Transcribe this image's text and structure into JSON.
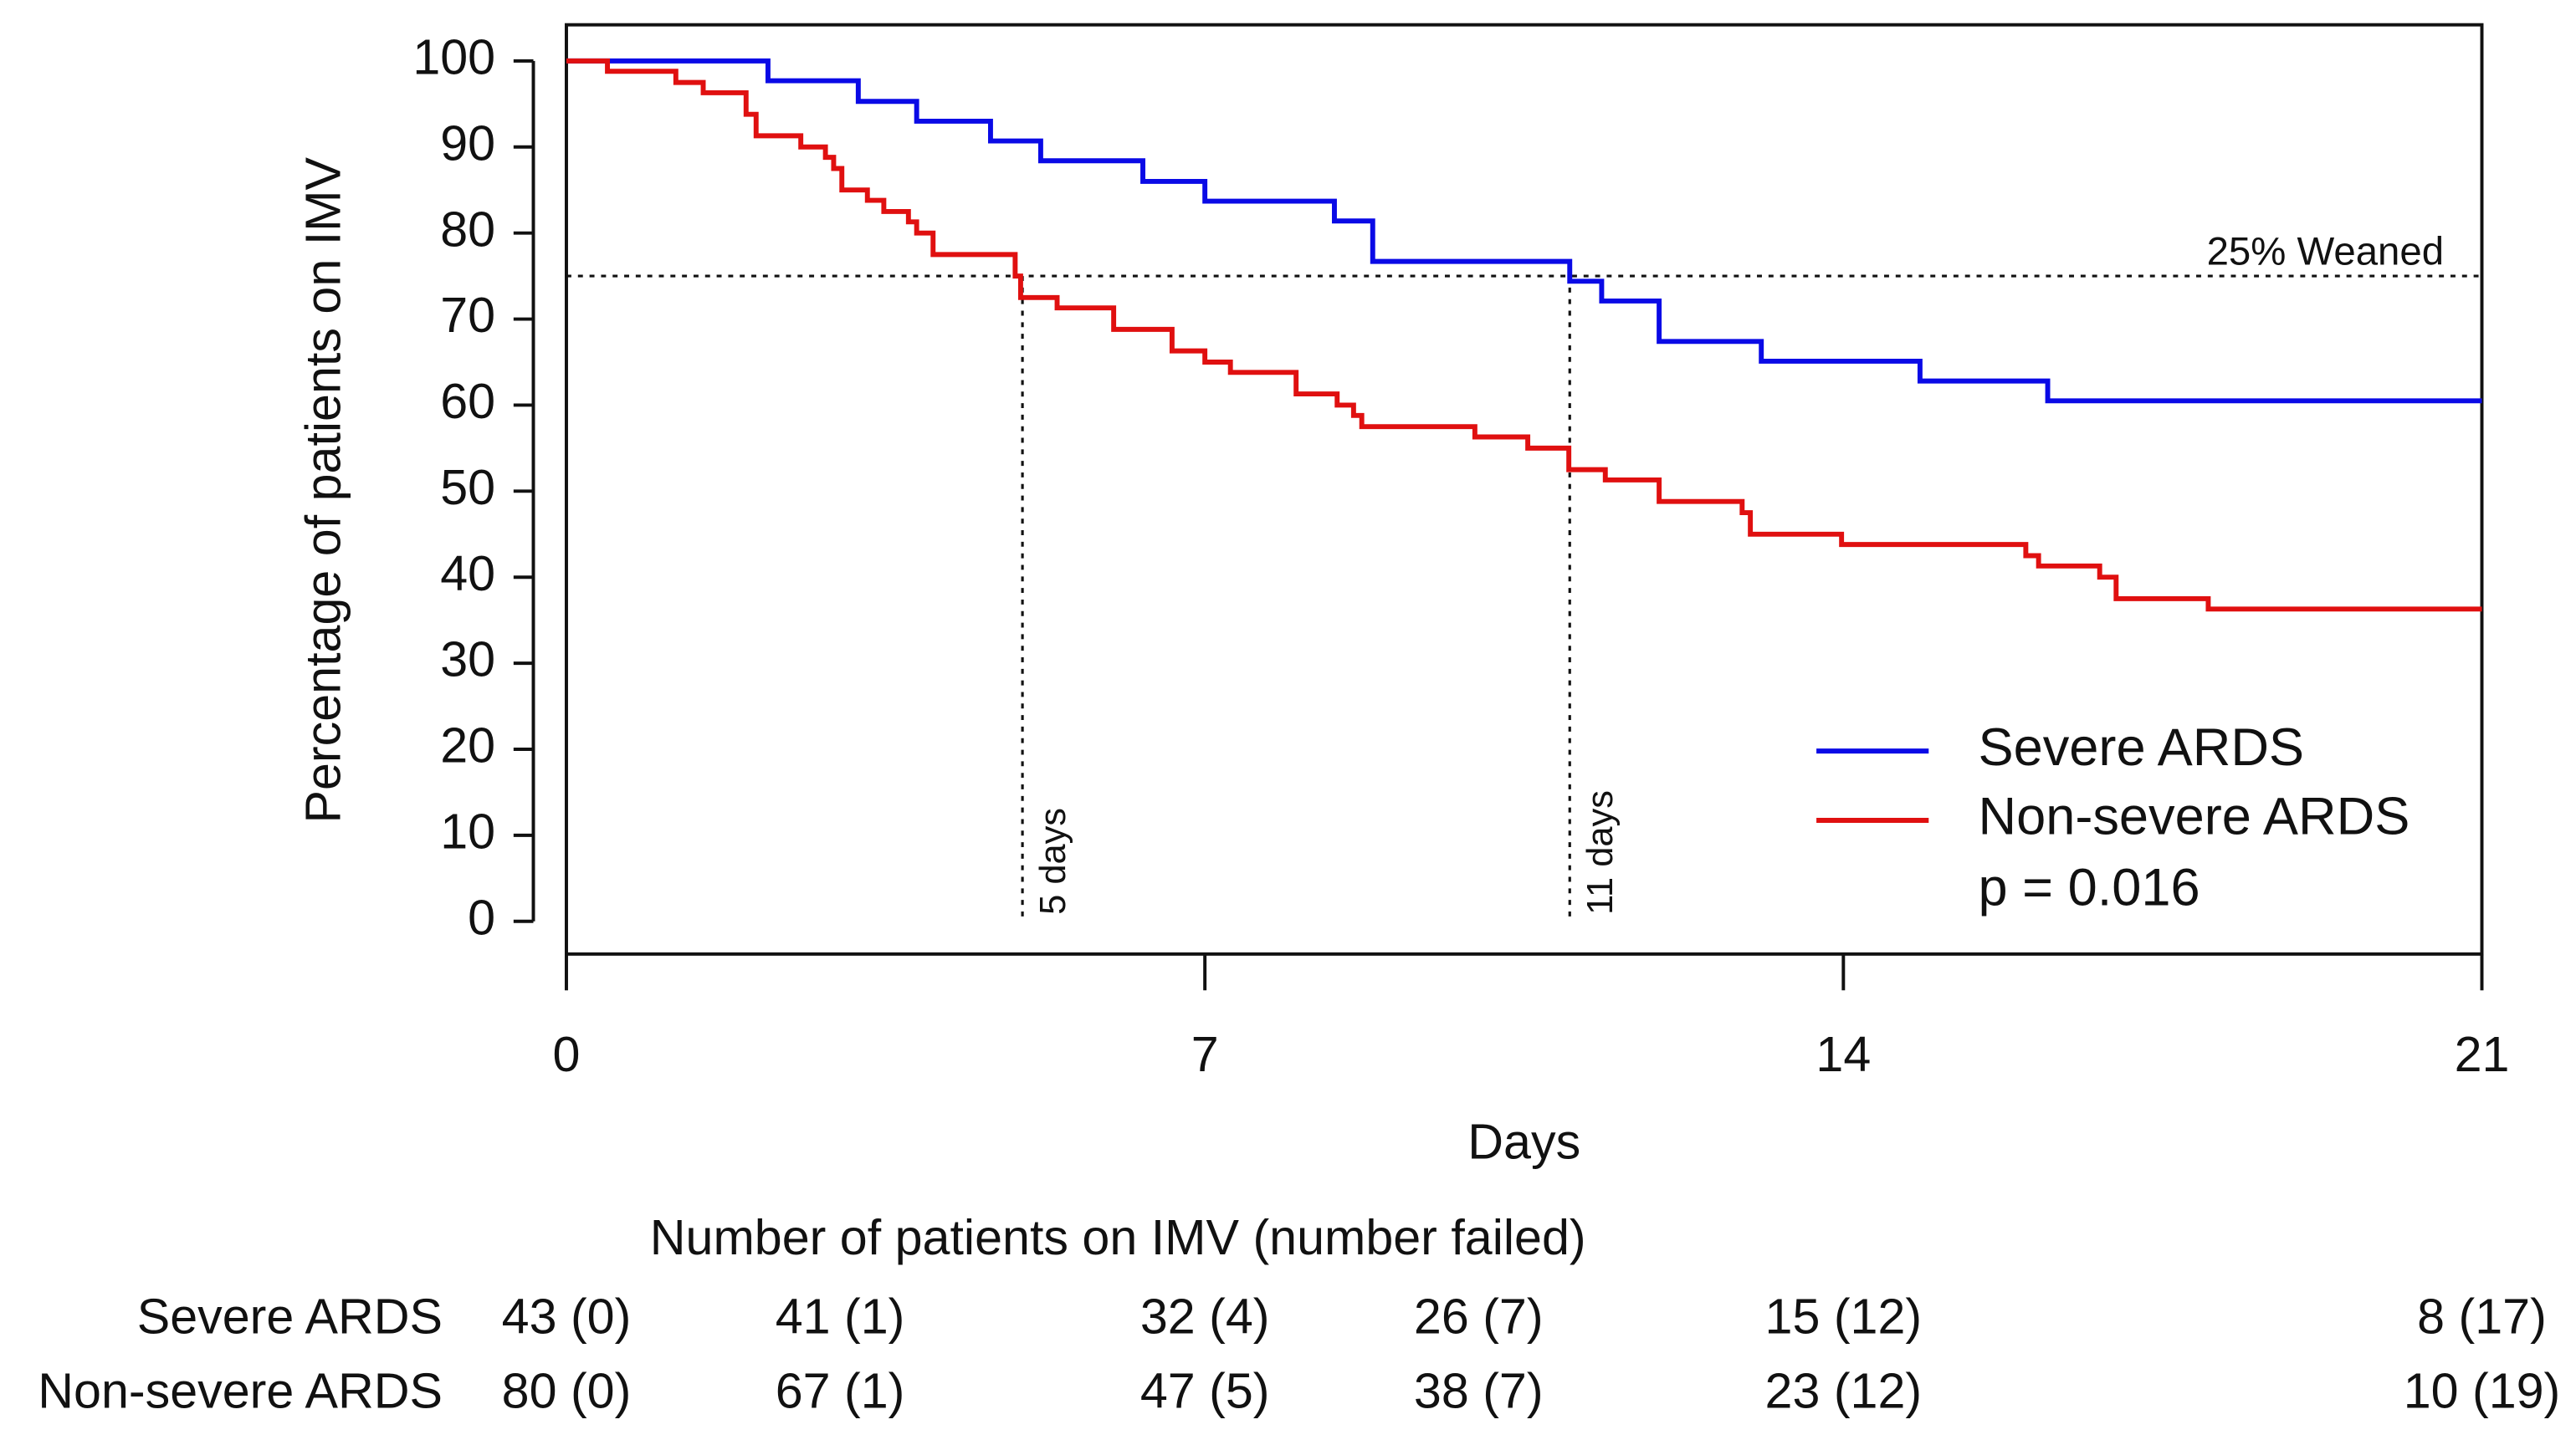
{
  "chart_data": {
    "type": "step",
    "x_label": "Days",
    "y_label": "Percentage of patients on IMV",
    "xlim": [
      0,
      21
    ],
    "ylim": [
      -3.8,
      104.2
    ],
    "xticks": [
      0,
      7,
      14,
      21
    ],
    "yticks": [
      0,
      10,
      20,
      30,
      40,
      50,
      60,
      70,
      80,
      90,
      100
    ],
    "series": [
      {
        "name": "Severe ARDS",
        "color": "#0a0ae6",
        "x": [
          0,
          2.21,
          3.2,
          3.84,
          4.65,
          5.2,
          6.32,
          7.0,
          8.42,
          8.84,
          11.0,
          11.35,
          11.98,
          13.1,
          14.84,
          16.24,
          21
        ],
        "values": [
          100,
          97.7,
          95.3,
          93.0,
          90.7,
          88.4,
          86.0,
          83.7,
          81.4,
          76.7,
          74.4,
          72.1,
          67.4,
          65.1,
          62.8,
          60.5,
          60.5
        ]
      },
      {
        "name": "Non-severe ARDS",
        "color": "#e01010",
        "x": [
          0,
          0.45,
          1.2,
          1.5,
          1.97,
          2.08,
          2.57,
          2.84,
          2.93,
          3.02,
          3.3,
          3.48,
          3.75,
          3.84,
          4.02,
          4.92,
          4.98,
          5.38,
          6.0,
          6.64,
          7.0,
          7.28,
          8.0,
          8.45,
          8.63,
          8.72,
          9.96,
          10.54,
          10.99,
          11.39,
          11.98,
          12.89,
          12.98,
          13.98,
          16.0,
          16.14,
          16.81,
          16.99,
          18.0,
          21
        ],
        "values": [
          100,
          98.8,
          97.5,
          96.3,
          93.8,
          91.3,
          90.0,
          88.8,
          87.5,
          85.0,
          83.8,
          82.5,
          81.3,
          80.0,
          77.5,
          75.0,
          72.5,
          71.3,
          68.8,
          66.3,
          65.0,
          63.8,
          61.3,
          60.0,
          58.8,
          57.5,
          56.3,
          55.0,
          52.5,
          51.3,
          48.8,
          47.5,
          45.0,
          43.8,
          42.5,
          41.3,
          40.0,
          37.5,
          36.3,
          36.3
        ]
      }
    ],
    "hline": 75,
    "hline_label": "25% Weaned",
    "median_lines": [
      {
        "x": 5,
        "label": "5 days"
      },
      {
        "x": 11,
        "label": "11 days"
      }
    ],
    "p_value_label": "p = 0.016",
    "risk_table": {
      "title": "Number of patients on IMV (number failed)",
      "times": [
        0,
        3,
        7,
        10,
        14,
        21
      ],
      "rows": [
        {
          "name": "Severe ARDS",
          "cells": [
            "43 (0)",
            "41 (1)",
            "32 (4)",
            "26 (7)",
            "15 (12)",
            "8 (17)"
          ]
        },
        {
          "name": "Non-severe ARDS",
          "cells": [
            "80 (0)",
            "67 (1)",
            "47 (5)",
            "38 (7)",
            "23 (12)",
            "10 (19)"
          ]
        }
      ]
    }
  }
}
